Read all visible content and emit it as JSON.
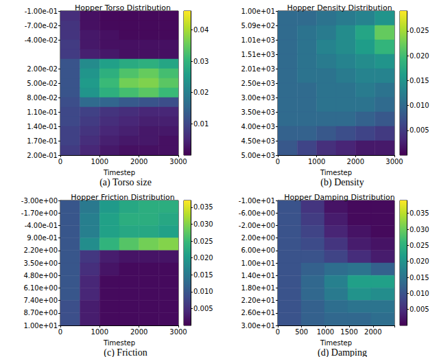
{
  "chart_data": [
    {
      "type": "heatmap",
      "title": "Hopper Torso Distribution",
      "caption": "(a) Torso size",
      "x_label": "Timestep",
      "xlim": [
        0,
        3000
      ],
      "xticks": [
        0,
        1000,
        2000,
        3000
      ],
      "ylim": [
        -0.1,
        0.2
      ],
      "yticks": [
        {
          "value": -0.1,
          "label": "-1.00e-01"
        },
        {
          "value": -0.07,
          "label": "-7.00e-02"
        },
        {
          "value": -0.04,
          "label": "-4.00e-02"
        },
        {
          "value": 0.02,
          "label": "2.00e-02"
        },
        {
          "value": 0.05,
          "label": "5.00e-02"
        },
        {
          "value": 0.08,
          "label": "8.00e-02"
        },
        {
          "value": 0.11,
          "label": "1.10e-01"
        },
        {
          "value": 0.14,
          "label": "1.40e-01"
        },
        {
          "value": 0.17,
          "label": "1.70e-01"
        },
        {
          "value": 0.2,
          "label": "2.00e-01"
        }
      ],
      "x_edges": [
        0,
        500,
        1000,
        1500,
        2000,
        2500,
        3000
      ],
      "y_edges": [
        -0.1,
        -0.08,
        -0.06,
        -0.04,
        -0.02,
        0,
        0.02,
        0.04,
        0.06,
        0.08,
        0.1,
        0.12,
        0.14,
        0.16,
        0.18,
        0.2
      ],
      "cells": [
        [
          0.006,
          0.002,
          0.001,
          0.001,
          0.001,
          0.001
        ],
        [
          0.007,
          0.002,
          0.001,
          0.001,
          0.001,
          0.001
        ],
        [
          0.007,
          0.003,
          0.002,
          0.001,
          0.001,
          0.001
        ],
        [
          0.008,
          0.003,
          0.002,
          0.002,
          0.002,
          0.002
        ],
        [
          0.008,
          0.004,
          0.003,
          0.002,
          0.002,
          0.002
        ],
        [
          0.012,
          0.022,
          0.026,
          0.028,
          0.029,
          0.027
        ],
        [
          0.012,
          0.024,
          0.029,
          0.033,
          0.035,
          0.032
        ],
        [
          0.012,
          0.025,
          0.031,
          0.036,
          0.037,
          0.034
        ],
        [
          0.012,
          0.024,
          0.029,
          0.032,
          0.034,
          0.031
        ],
        [
          0.011,
          0.016,
          0.015,
          0.013,
          0.012,
          0.011
        ],
        [
          0.01,
          0.009,
          0.007,
          0.006,
          0.005,
          0.005
        ],
        [
          0.01,
          0.008,
          0.006,
          0.005,
          0.004,
          0.004
        ],
        [
          0.009,
          0.007,
          0.005,
          0.004,
          0.003,
          0.003
        ],
        [
          0.009,
          0.006,
          0.004,
          0.003,
          0.003,
          0.002
        ],
        [
          0.008,
          0.005,
          0.003,
          0.002,
          0.002,
          0.002
        ]
      ],
      "colorbar": {
        "range": [
          0,
          0.046
        ],
        "ticks": [
          0.01,
          0.02,
          0.03,
          0.04
        ]
      }
    },
    {
      "type": "heatmap",
      "title": "Hopper Density Distribution",
      "caption": "(b) Density",
      "x_label": "Timestep",
      "xlim": [
        0,
        3000
      ],
      "xticks": [
        0,
        1000,
        2000,
        3000
      ],
      "ylim": [
        10,
        5000
      ],
      "yticks": [
        {
          "value": 10,
          "label": "1.00e+01"
        },
        {
          "value": 509,
          "label": "5.09e+02"
        },
        {
          "value": 1008,
          "label": "1.01e+03"
        },
        {
          "value": 1507,
          "label": "1.51e+03"
        },
        {
          "value": 2006,
          "label": "2.01e+03"
        },
        {
          "value": 2505,
          "label": "2.50e+03"
        },
        {
          "value": 3004,
          "label": "3.00e+03"
        },
        {
          "value": 3503,
          "label": "3.50e+03"
        },
        {
          "value": 4002,
          "label": "4.00e+03"
        },
        {
          "value": 4501,
          "label": "4.50e+03"
        },
        {
          "value": 5000,
          "label": "5.00e+03"
        }
      ],
      "x_edges": [
        0,
        500,
        1000,
        1500,
        2000,
        2500,
        3000
      ],
      "y_edges": [
        10,
        509,
        1008,
        1507,
        2006,
        2505,
        3004,
        3503,
        4002,
        4501,
        5000
      ],
      "cells": [
        [
          0.01,
          0.01,
          0.011,
          0.012,
          0.013,
          0.015
        ],
        [
          0.01,
          0.011,
          0.012,
          0.014,
          0.017,
          0.022
        ],
        [
          0.01,
          0.011,
          0.013,
          0.014,
          0.016,
          0.019
        ],
        [
          0.01,
          0.011,
          0.012,
          0.013,
          0.014,
          0.015
        ],
        [
          0.01,
          0.011,
          0.011,
          0.012,
          0.013,
          0.013
        ],
        [
          0.01,
          0.01,
          0.011,
          0.011,
          0.012,
          0.011
        ],
        [
          0.01,
          0.01,
          0.011,
          0.011,
          0.011,
          0.01
        ],
        [
          0.01,
          0.01,
          0.01,
          0.01,
          0.009,
          0.008
        ],
        [
          0.009,
          0.009,
          0.008,
          0.007,
          0.006,
          0.005
        ],
        [
          0.008,
          0.006,
          0.004,
          0.003,
          0.002,
          0.002
        ]
      ],
      "colorbar": {
        "range": [
          0,
          0.029
        ],
        "ticks": [
          {
            "value": 0.005,
            "label": "0.005"
          },
          {
            "value": 0.01,
            "label": "0.010"
          },
          {
            "value": 0.015,
            "label": "0.015"
          },
          {
            "value": 0.02,
            "label": "0.020"
          },
          {
            "value": 0.025,
            "label": "0.025"
          }
        ]
      }
    },
    {
      "type": "heatmap",
      "title": "Hopper Friction Distribution",
      "caption": "(c) Friction",
      "x_label": "Timestep",
      "xlim": [
        0,
        3000
      ],
      "xticks": [
        0,
        1000,
        2000,
        3000
      ],
      "ylim": [
        -3,
        10
      ],
      "yticks": [
        {
          "value": -3,
          "label": "-3.00e+00"
        },
        {
          "value": -1.7,
          "label": "-1.70e+00"
        },
        {
          "value": -0.4,
          "label": "-4.00e-01"
        },
        {
          "value": 0.9,
          "label": "9.00e-01"
        },
        {
          "value": 2.2,
          "label": "2.20e+00"
        },
        {
          "value": 3.5,
          "label": "3.50e+00"
        },
        {
          "value": 4.8,
          "label": "4.80e+00"
        },
        {
          "value": 6.1,
          "label": "6.10e+00"
        },
        {
          "value": 7.4,
          "label": "7.40e+00"
        },
        {
          "value": 8.7,
          "label": "8.70e+00"
        },
        {
          "value": 10,
          "label": "1.00e+01"
        }
      ],
      "x_edges": [
        0,
        500,
        1000,
        1500,
        2000,
        2500,
        3000
      ],
      "y_edges": [
        -3,
        -1.7,
        -0.4,
        0.9,
        2.2,
        3.5,
        4.8,
        6.1,
        7.4,
        8.7,
        10
      ],
      "cells": [
        [
          0.01,
          0.015,
          0.02,
          0.022,
          0.023,
          0.023
        ],
        [
          0.01,
          0.016,
          0.021,
          0.023,
          0.023,
          0.022
        ],
        [
          0.01,
          0.016,
          0.021,
          0.022,
          0.022,
          0.021
        ],
        [
          0.01,
          0.018,
          0.024,
          0.027,
          0.029,
          0.03
        ],
        [
          0.01,
          0.006,
          0.003,
          0.002,
          0.002,
          0.002
        ],
        [
          0.01,
          0.005,
          0.002,
          0.001,
          0.001,
          0.001
        ],
        [
          0.01,
          0.004,
          0.001,
          0.001,
          0.001,
          0.001
        ],
        [
          0.01,
          0.004,
          0.001,
          0.001,
          0.001,
          0.001
        ],
        [
          0.009,
          0.003,
          0.001,
          0.001,
          0.001,
          0.001
        ],
        [
          0.009,
          0.003,
          0.001,
          0.001,
          0.001,
          0.001
        ]
      ],
      "colorbar": {
        "range": [
          0,
          0.037
        ],
        "ticks": [
          {
            "value": 0.005,
            "label": "0.005"
          },
          {
            "value": 0.01,
            "label": "0.010"
          },
          {
            "value": 0.015,
            "label": "0.015"
          },
          {
            "value": 0.02,
            "label": "0.020"
          },
          {
            "value": 0.025,
            "label": "0.025"
          },
          {
            "value": 0.03,
            "label": "0.030"
          },
          {
            "value": 0.035,
            "label": "0.035"
          }
        ]
      }
    },
    {
      "type": "heatmap",
      "title": "Hopper Damping Distribution",
      "caption": "(d) Damping",
      "x_label": "Timestep",
      "xlim": [
        0,
        2450
      ],
      "xticks": [
        0,
        500,
        1000,
        1500,
        2000
      ],
      "ylim": [
        -10,
        30
      ],
      "yticks": [
        {
          "value": -10,
          "label": "-1.00e+01"
        },
        {
          "value": -6,
          "label": "-6.00e+00"
        },
        {
          "value": -2,
          "label": "-2.00e+00"
        },
        {
          "value": 2,
          "label": "2.00e+00"
        },
        {
          "value": 6,
          "label": "6.00e+00"
        },
        {
          "value": 10,
          "label": "1.00e+01"
        },
        {
          "value": 14,
          "label": "1.40e+01"
        },
        {
          "value": 18,
          "label": "1.80e+01"
        },
        {
          "value": 22,
          "label": "2.20e+01"
        },
        {
          "value": 26,
          "label": "2.60e+01"
        },
        {
          "value": 30,
          "label": "3.00e+01"
        }
      ],
      "x_edges": [
        0,
        490,
        980,
        1470,
        1960,
        2450
      ],
      "y_edges": [
        -10,
        -6,
        -2,
        2,
        6,
        10,
        14,
        18,
        22,
        26,
        30
      ],
      "cells": [
        [
          0.01,
          0.006,
          0.002,
          0.001,
          0.001
        ],
        [
          0.01,
          0.007,
          0.003,
          0.001,
          0.001
        ],
        [
          0.01,
          0.008,
          0.004,
          0.002,
          0.001
        ],
        [
          0.01,
          0.009,
          0.006,
          0.003,
          0.002
        ],
        [
          0.01,
          0.01,
          0.008,
          0.005,
          0.003
        ],
        [
          0.01,
          0.012,
          0.014,
          0.015,
          0.012
        ],
        [
          0.01,
          0.013,
          0.017,
          0.022,
          0.022
        ],
        [
          0.01,
          0.013,
          0.016,
          0.02,
          0.019
        ],
        [
          0.01,
          0.012,
          0.014,
          0.015,
          0.015
        ],
        [
          0.01,
          0.012,
          0.013,
          0.013,
          0.014
        ]
      ],
      "colorbar": {
        "range": [
          0,
          0.039
        ],
        "ticks": [
          {
            "value": 0.005,
            "label": "0.005"
          },
          {
            "value": 0.01,
            "label": "0.010"
          },
          {
            "value": 0.015,
            "label": "0.015"
          },
          {
            "value": 0.02,
            "label": "0.020"
          },
          {
            "value": 0.025,
            "label": "0.025"
          },
          {
            "value": 0.03,
            "label": "0.030"
          },
          {
            "value": 0.035,
            "label": "0.035"
          }
        ]
      }
    }
  ]
}
